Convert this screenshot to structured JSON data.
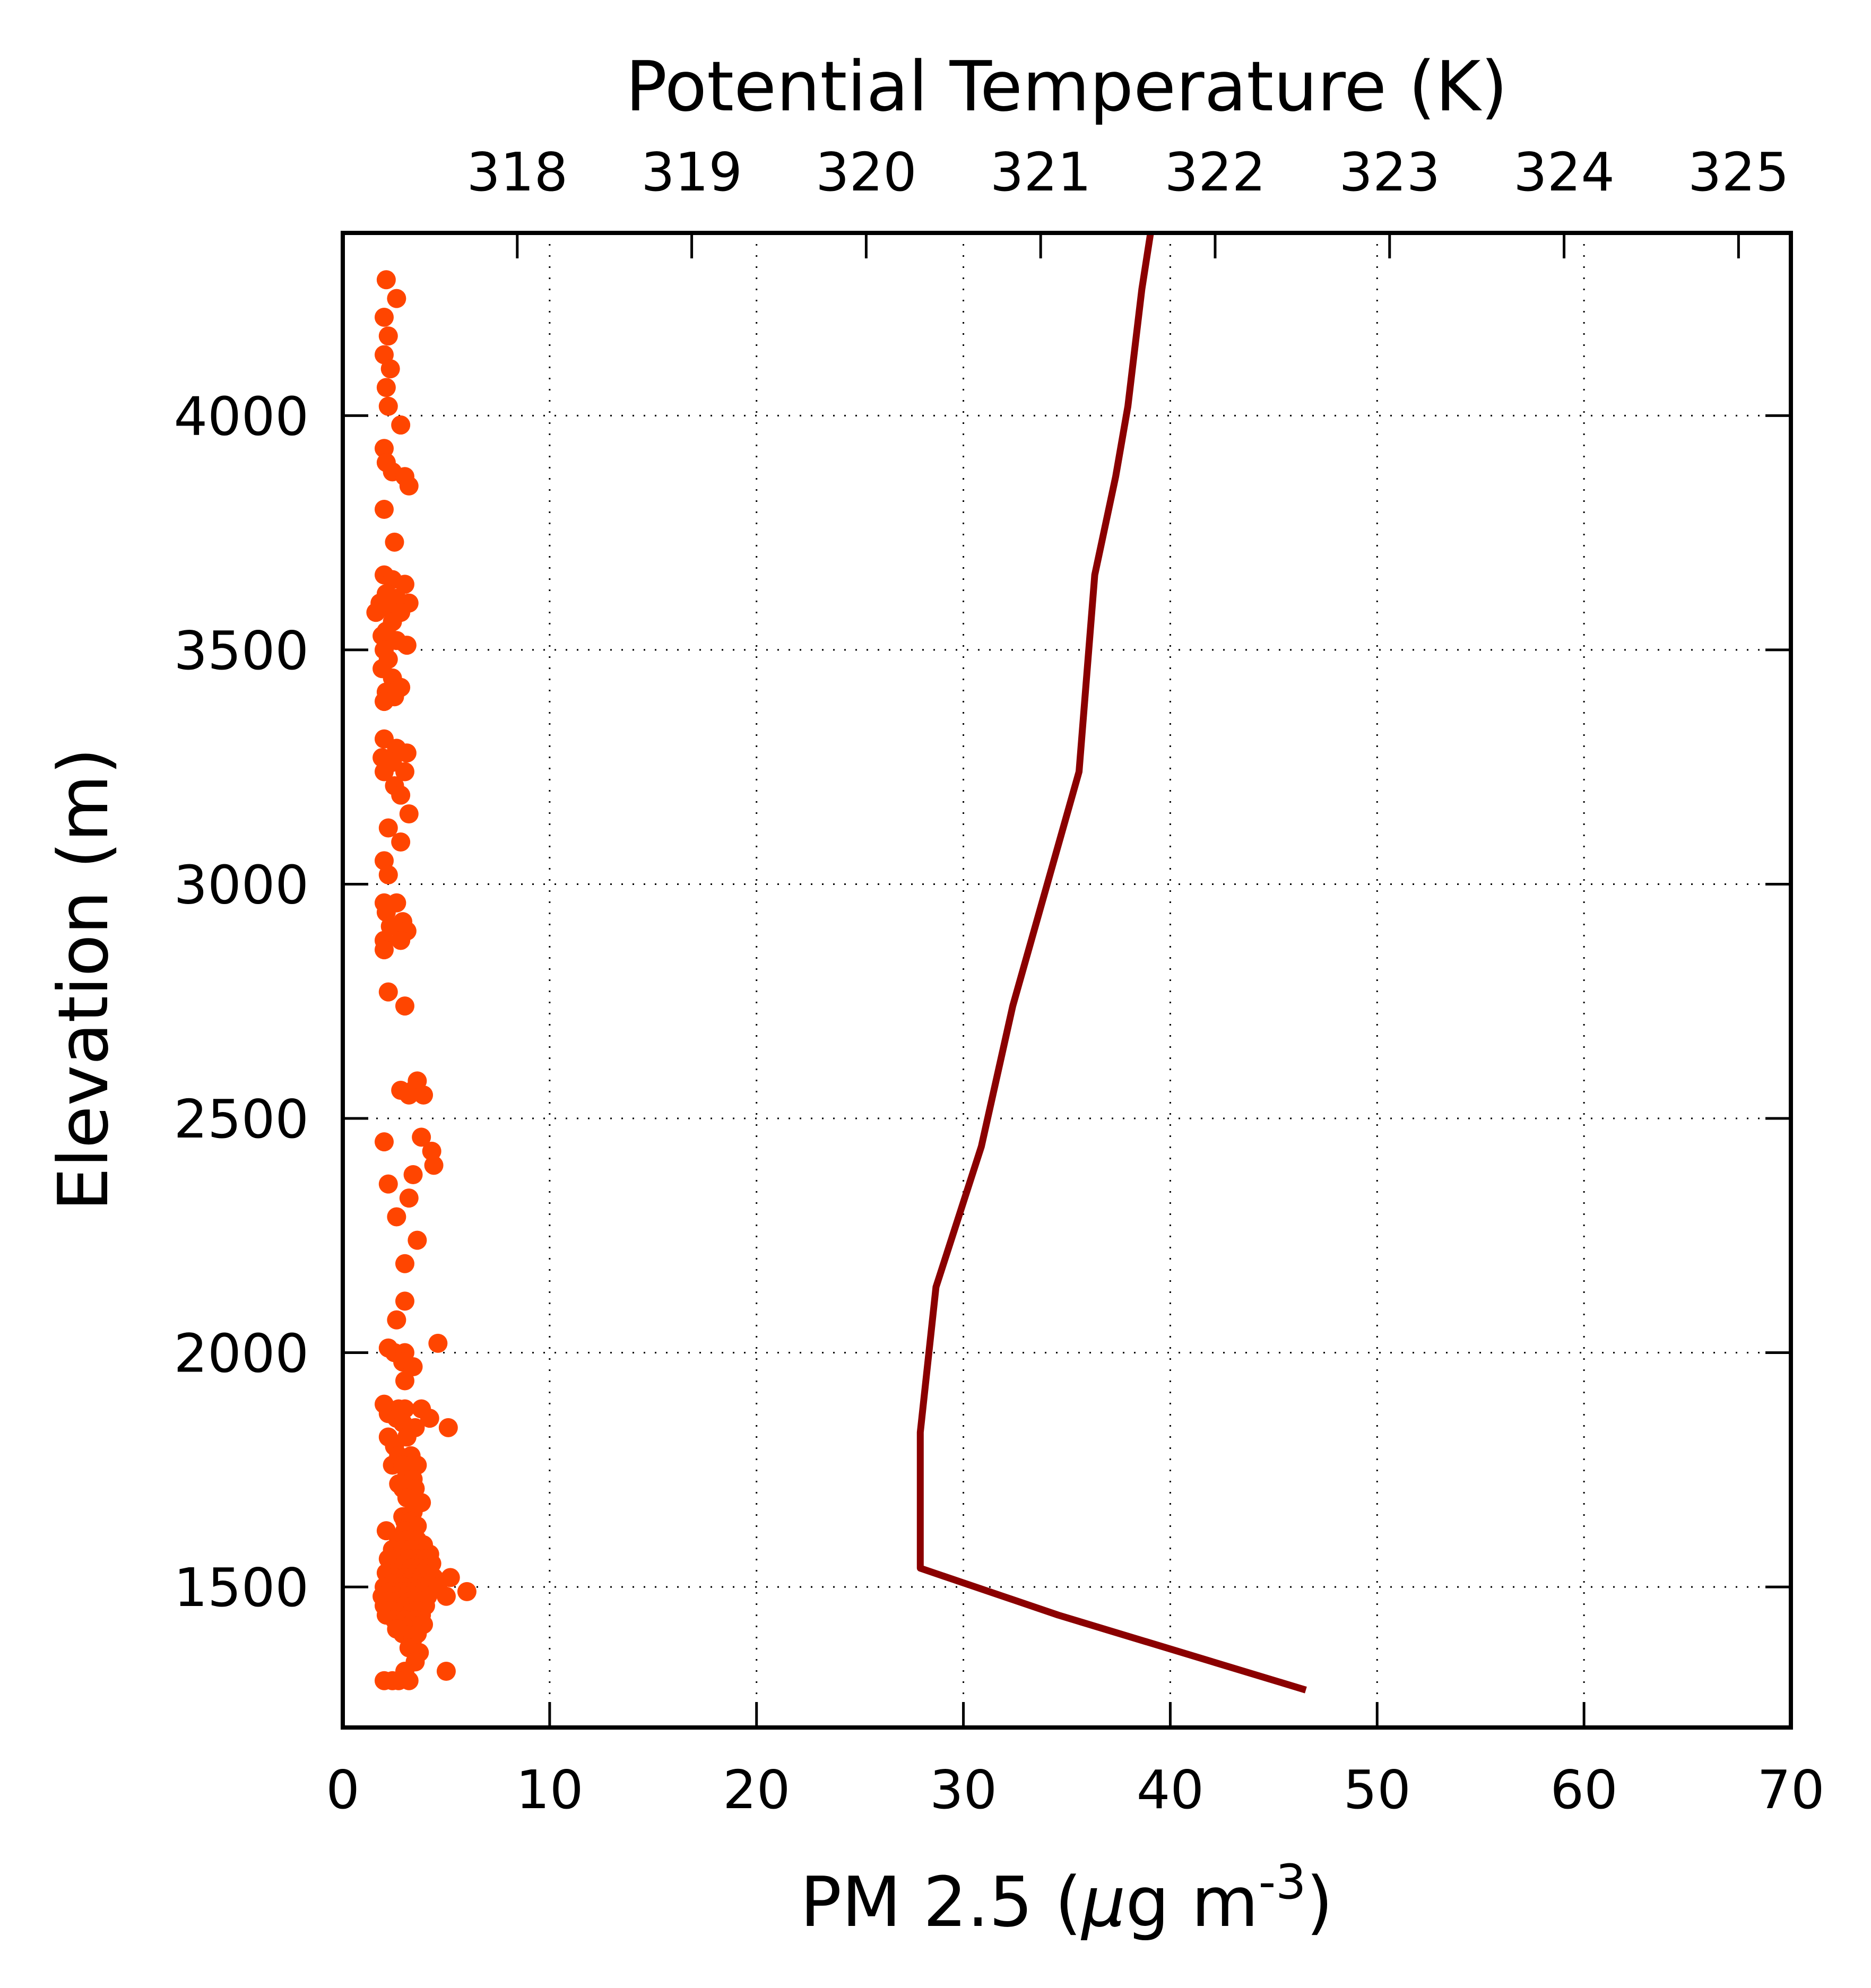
{
  "chart_data": {
    "type": "scatter",
    "title": "",
    "ylabel": "Elevation (m)",
    "xlabel_bottom": "PM 2.5 (",
    "xlabel_bottom_mu": "μ",
    "xlabel_bottom_mid": "g m",
    "xlabel_bottom_sup": "-3",
    "xlabel_bottom_end": ")",
    "xlabel_top": "Potential Temperature (K)",
    "xlim_bottom": [
      0,
      70
    ],
    "xlim_top": [
      317.0,
      325.3
    ],
    "ylim": [
      1200,
      4390
    ],
    "bottom_ticks": [
      0,
      10,
      20,
      30,
      40,
      50,
      60,
      70
    ],
    "bottom_tick_labels": [
      "0",
      "10",
      "20",
      "30",
      "40",
      "50",
      "60",
      "70"
    ],
    "top_ticks": [
      318,
      319,
      320,
      321,
      322,
      323,
      324,
      325
    ],
    "top_tick_labels": [
      "318",
      "319",
      "320",
      "321",
      "322",
      "323",
      "324",
      "325"
    ],
    "y_ticks": [
      1500,
      2000,
      2500,
      3000,
      3500,
      4000
    ],
    "y_tick_labels": [
      "1500",
      "2000",
      "2500",
      "3000",
      "3500",
      "4000"
    ],
    "grid": true,
    "colors": {
      "pm25": "#ff4500",
      "theta": "#8b0000",
      "frame": "#000000"
    },
    "series": [
      {
        "kind": "scatter",
        "axis": "bottom",
        "points": [
          [
            2.1,
            4290
          ],
          [
            2.6,
            4250
          ],
          [
            2.0,
            4210
          ],
          [
            2.2,
            4170
          ],
          [
            2.0,
            4130
          ],
          [
            2.3,
            4100
          ],
          [
            2.1,
            4060
          ],
          [
            2.2,
            4020
          ],
          [
            2.8,
            3980
          ],
          [
            2.0,
            3930
          ],
          [
            2.1,
            3900
          ],
          [
            2.4,
            3880
          ],
          [
            3.0,
            3870
          ],
          [
            3.2,
            3850
          ],
          [
            2.0,
            3800
          ],
          [
            2.5,
            3730
          ],
          [
            2.0,
            3660
          ],
          [
            2.4,
            3650
          ],
          [
            3.0,
            3640
          ],
          [
            2.1,
            3620
          ],
          [
            2.6,
            3610
          ],
          [
            1.8,
            3600
          ],
          [
            3.2,
            3600
          ],
          [
            2.2,
            3590
          ],
          [
            2.8,
            3580
          ],
          [
            1.6,
            3580
          ],
          [
            2.4,
            3560
          ],
          [
            2.1,
            3540
          ],
          [
            1.9,
            3530
          ],
          [
            2.6,
            3520
          ],
          [
            3.1,
            3510
          ],
          [
            2.0,
            3500
          ],
          [
            2.2,
            3480
          ],
          [
            1.9,
            3460
          ],
          [
            2.4,
            3440
          ],
          [
            2.8,
            3420
          ],
          [
            2.1,
            3410
          ],
          [
            2.5,
            3400
          ],
          [
            2.0,
            3390
          ],
          [
            2.0,
            3310
          ],
          [
            2.6,
            3290
          ],
          [
            3.1,
            3280
          ],
          [
            1.9,
            3270
          ],
          [
            2.4,
            3260
          ],
          [
            2.0,
            3240
          ],
          [
            3.0,
            3240
          ],
          [
            2.5,
            3210
          ],
          [
            2.8,
            3190
          ],
          [
            3.2,
            3150
          ],
          [
            2.2,
            3120
          ],
          [
            2.8,
            3090
          ],
          [
            2.0,
            3050
          ],
          [
            2.2,
            3020
          ],
          [
            2.0,
            2960
          ],
          [
            2.6,
            2960
          ],
          [
            2.1,
            2940
          ],
          [
            2.9,
            2920
          ],
          [
            2.3,
            2910
          ],
          [
            3.1,
            2900
          ],
          [
            2.0,
            2880
          ],
          [
            2.8,
            2880
          ],
          [
            2.0,
            2860
          ],
          [
            2.2,
            2770
          ],
          [
            3.0,
            2740
          ],
          [
            3.6,
            2580
          ],
          [
            2.8,
            2560
          ],
          [
            3.4,
            2560
          ],
          [
            3.2,
            2550
          ],
          [
            3.9,
            2550
          ],
          [
            3.8,
            2460
          ],
          [
            4.3,
            2430
          ],
          [
            2.0,
            2450
          ],
          [
            4.4,
            2400
          ],
          [
            3.4,
            2380
          ],
          [
            2.2,
            2360
          ],
          [
            3.2,
            2330
          ],
          [
            2.6,
            2290
          ],
          [
            3.6,
            2240
          ],
          [
            3.0,
            2190
          ],
          [
            3.0,
            2110
          ],
          [
            2.6,
            2070
          ],
          [
            4.6,
            2020
          ],
          [
            2.2,
            2010
          ],
          [
            2.5,
            2000
          ],
          [
            3.0,
            2000
          ],
          [
            2.9,
            1980
          ],
          [
            3.4,
            1970
          ],
          [
            3.0,
            1940
          ],
          [
            2.0,
            1890
          ],
          [
            2.7,
            1880
          ],
          [
            2.2,
            1870
          ],
          [
            3.0,
            1880
          ],
          [
            3.8,
            1880
          ],
          [
            2.6,
            1860
          ],
          [
            4.2,
            1860
          ],
          [
            2.9,
            1850
          ],
          [
            3.5,
            1840
          ],
          [
            5.1,
            1840
          ],
          [
            2.2,
            1820
          ],
          [
            3.1,
            1820
          ],
          [
            2.5,
            1800
          ],
          [
            2.7,
            1780
          ],
          [
            3.3,
            1780
          ],
          [
            2.4,
            1760
          ],
          [
            2.9,
            1760
          ],
          [
            3.6,
            1760
          ],
          [
            3.1,
            1740
          ],
          [
            3.4,
            1730
          ],
          [
            2.7,
            1720
          ],
          [
            2.9,
            1710
          ],
          [
            3.5,
            1710
          ],
          [
            3.1,
            1690
          ],
          [
            3.8,
            1680
          ],
          [
            3.4,
            1660
          ],
          [
            2.9,
            1650
          ],
          [
            3.0,
            1640
          ],
          [
            3.3,
            1640
          ],
          [
            3.6,
            1630
          ],
          [
            2.1,
            1620
          ],
          [
            3.0,
            1620
          ],
          [
            3.4,
            1610
          ],
          [
            2.7,
            1600
          ],
          [
            3.1,
            1600
          ],
          [
            3.6,
            1600
          ],
          [
            3.9,
            1590
          ],
          [
            2.4,
            1580
          ],
          [
            2.9,
            1580
          ],
          [
            3.3,
            1580
          ],
          [
            3.7,
            1570
          ],
          [
            4.2,
            1570
          ],
          [
            2.2,
            1560
          ],
          [
            2.8,
            1560
          ],
          [
            3.2,
            1560
          ],
          [
            3.6,
            1560
          ],
          [
            4.0,
            1560
          ],
          [
            2.6,
            1550
          ],
          [
            3.0,
            1550
          ],
          [
            3.4,
            1550
          ],
          [
            3.8,
            1550
          ],
          [
            4.3,
            1550
          ],
          [
            2.4,
            1540
          ],
          [
            2.9,
            1540
          ],
          [
            3.3,
            1540
          ],
          [
            3.7,
            1540
          ],
          [
            4.1,
            1540
          ],
          [
            2.1,
            1530
          ],
          [
            2.7,
            1530
          ],
          [
            3.1,
            1530
          ],
          [
            3.5,
            1530
          ],
          [
            3.9,
            1530
          ],
          [
            5.2,
            1520
          ],
          [
            2.5,
            1520
          ],
          [
            3.0,
            1520
          ],
          [
            3.4,
            1520
          ],
          [
            3.8,
            1520
          ],
          [
            4.4,
            1520
          ],
          [
            2.2,
            1510
          ],
          [
            2.8,
            1510
          ],
          [
            3.2,
            1510
          ],
          [
            3.6,
            1510
          ],
          [
            4.2,
            1510
          ],
          [
            2.0,
            1500
          ],
          [
            2.6,
            1500
          ],
          [
            3.0,
            1500
          ],
          [
            3.4,
            1500
          ],
          [
            3.9,
            1500
          ],
          [
            4.6,
            1500
          ],
          [
            2.3,
            1490
          ],
          [
            2.8,
            1490
          ],
          [
            3.2,
            1490
          ],
          [
            3.7,
            1490
          ],
          [
            6.0,
            1490
          ],
          [
            1.9,
            1480
          ],
          [
            2.5,
            1480
          ],
          [
            3.1,
            1480
          ],
          [
            3.5,
            1480
          ],
          [
            4.1,
            1480
          ],
          [
            5.0,
            1480
          ],
          [
            2.2,
            1470
          ],
          [
            2.7,
            1470
          ],
          [
            3.3,
            1470
          ],
          [
            3.8,
            1470
          ],
          [
            2.0,
            1460
          ],
          [
            2.6,
            1460
          ],
          [
            3.0,
            1460
          ],
          [
            3.4,
            1460
          ],
          [
            4.0,
            1460
          ],
          [
            2.3,
            1450
          ],
          [
            2.9,
            1450
          ],
          [
            3.6,
            1450
          ],
          [
            2.1,
            1440
          ],
          [
            2.7,
            1440
          ],
          [
            3.2,
            1440
          ],
          [
            3.8,
            1440
          ],
          [
            2.5,
            1430
          ],
          [
            3.0,
            1430
          ],
          [
            3.5,
            1430
          ],
          [
            2.8,
            1420
          ],
          [
            3.3,
            1420
          ],
          [
            3.9,
            1420
          ],
          [
            2.6,
            1410
          ],
          [
            3.1,
            1410
          ],
          [
            3.6,
            1400
          ],
          [
            2.9,
            1400
          ],
          [
            3.4,
            1390
          ],
          [
            3.2,
            1370
          ],
          [
            3.7,
            1360
          ],
          [
            3.5,
            1340
          ],
          [
            5.0,
            1320
          ],
          [
            3.0,
            1320
          ],
          [
            2.0,
            1300
          ],
          [
            2.7,
            1300
          ],
          [
            3.2,
            1300
          ],
          [
            2.4,
            1300
          ]
        ]
      },
      {
        "kind": "line",
        "axis": "top",
        "points": [
          [
            321.63,
            4390
          ],
          [
            321.58,
            4270
          ],
          [
            321.5,
            4020
          ],
          [
            321.43,
            3870
          ],
          [
            321.31,
            3660
          ],
          [
            321.22,
            3240
          ],
          [
            320.84,
            2740
          ],
          [
            320.66,
            2440
          ],
          [
            320.4,
            2140
          ],
          [
            320.31,
            1830
          ],
          [
            320.31,
            1540
          ],
          [
            321.1,
            1440
          ],
          [
            322.52,
            1280
          ]
        ]
      }
    ]
  }
}
